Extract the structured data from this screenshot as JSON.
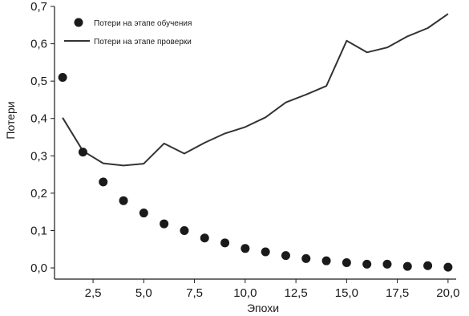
{
  "chart_data": {
    "type": "line",
    "xlabel": "Эпохи",
    "ylabel": "Потери",
    "xlim": [
      0.6,
      20.4
    ],
    "ylim": [
      -0.03,
      0.7
    ],
    "x_ticks": [
      2.5,
      5.0,
      7.5,
      10.0,
      12.5,
      15.0,
      17.5,
      20.0
    ],
    "x_tick_labels": [
      "2,5",
      "5,0",
      "7,5",
      "10,0",
      "12,5",
      "15,0",
      "17,5",
      "20,0"
    ],
    "y_ticks": [
      0.0,
      0.1,
      0.2,
      0.3,
      0.4,
      0.5,
      0.6,
      0.7
    ],
    "y_tick_labels": [
      "0,0",
      "0,1",
      "0,2",
      "0,3",
      "0,4",
      "0,5",
      "0,6",
      "0,7"
    ],
    "grid": false,
    "legend_position": "top-left",
    "series": [
      {
        "name": "Потери на этапе обучения",
        "style": "scatter",
        "color": "#1a1a1a",
        "x": [
          1,
          2,
          3,
          4,
          5,
          6,
          7,
          8,
          9,
          10,
          11,
          12,
          13,
          14,
          15,
          16,
          17,
          18,
          19,
          20
        ],
        "y": [
          0.51,
          0.31,
          0.23,
          0.18,
          0.147,
          0.118,
          0.1,
          0.08,
          0.067,
          0.052,
          0.043,
          0.033,
          0.025,
          0.019,
          0.014,
          0.01,
          0.01,
          0.004,
          0.006,
          0.002
        ]
      },
      {
        "name": "Потери на этапе проверки",
        "style": "line",
        "color": "#333333",
        "x": [
          1,
          2,
          3,
          4,
          5,
          6,
          7,
          8,
          9,
          10,
          11,
          12,
          13,
          14,
          15,
          16,
          17,
          18,
          19,
          20
        ],
        "y": [
          0.402,
          0.313,
          0.28,
          0.274,
          0.279,
          0.333,
          0.306,
          0.335,
          0.36,
          0.377,
          0.403,
          0.443,
          0.464,
          0.487,
          0.608,
          0.577,
          0.59,
          0.62,
          0.642,
          0.68
        ]
      }
    ]
  }
}
